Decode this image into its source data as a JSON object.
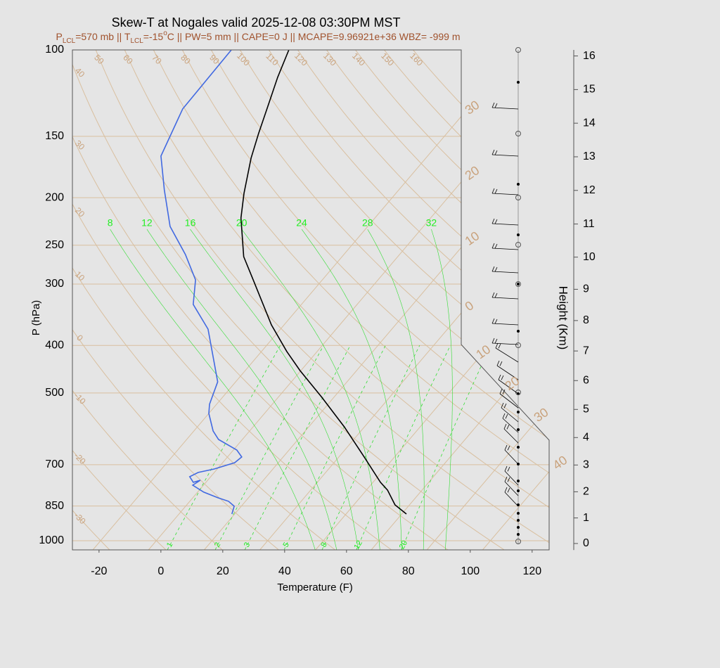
{
  "chart_data": {
    "type": "skewt",
    "title": "Skew-T at Nogales valid 2025-12-08 03:30PM MST",
    "subtitle_parts": [
      "P",
      "LCL",
      "=570 mb || T",
      "LCL",
      "=-15",
      "o",
      "C || PW=5 mm || CAPE=0 J || MCAPE=9.96921e+36 WBZ= -999 m"
    ],
    "x_label": "Temperature (F)",
    "y_label": "P (hPa)",
    "y2_label": "Height (Km)",
    "xlim": [
      -28.6,
      125.5
    ],
    "xticks": [
      -20,
      0,
      20,
      40,
      60,
      80,
      100,
      120
    ],
    "ylim": [
      1044,
      100
    ],
    "log_y": true,
    "yticks": [
      100,
      150,
      200,
      250,
      300,
      400,
      500,
      700,
      850,
      1000
    ],
    "y2lim": [
      -0.26,
      16.18
    ],
    "y2ticks": [
      0,
      1,
      2,
      3,
      4,
      5,
      6,
      7,
      8,
      9,
      10,
      11,
      12,
      13,
      14,
      15,
      16
    ],
    "grid": true,
    "series": [
      {
        "color": "#000000",
        "pressure": [
          100,
          113.7,
          130.6,
          148.1,
          166.1,
          196,
          220,
          263.8,
          296,
          363.3,
          411.7,
          450.1,
          510.3,
          586.2,
          675.2,
          760.3,
          788.4,
          845.2,
          882.3
        ],
        "values": [
          -96,
          -92.1,
          -87.2,
          -82.8,
          -78.5,
          -71.1,
          -65.3,
          -53.8,
          -43.8,
          -26.1,
          -13.8,
          -4.3,
          10.1,
          25.5,
          40.2,
          52.4,
          56.8,
          63.3,
          69.5
        ]
      },
      {
        "color": "#4169e1",
        "pressure": [
          100,
          131.9,
          164.5,
          192.8,
          228.9,
          261.2,
          294.1,
          330,
          370.6,
          474.6,
          527.2,
          550.4,
          597.6,
          622,
          653.5,
          675.2,
          693.4,
          714.3,
          726.1,
          740.6,
          760.3,
          753,
          770.6,
          796.4,
          817.6,
          831.2,
          850.6,
          882.3
        ],
        "values": [
          -114.6,
          -114.1,
          -108.2,
          -97.8,
          -85.9,
          -73.2,
          -63,
          -57,
          -45.4,
          -27.8,
          -24.3,
          -22,
          -15.8,
          -11.7,
          -2.9,
          0.6,
          -0.1,
          -5,
          -9.2,
          -10.8,
          -8.1,
          -6.4,
          -7.5,
          -2,
          4.1,
          8.5,
          11.7,
          13.1
        ]
      }
    ],
    "dry_adiabat_labels": [
      -30,
      -20,
      -10,
      0,
      10,
      20,
      30,
      40,
      50,
      60,
      70,
      80,
      90,
      100,
      110,
      120,
      130,
      140,
      150,
      160
    ],
    "isotherm_labels": [
      {
        "value": -30,
        "label": "30"
      },
      {
        "value": -20,
        "label": "20"
      },
      {
        "value": -10,
        "label": "10"
      },
      0,
      10,
      20,
      30,
      40
    ],
    "moist_adiabat_labels": [
      8,
      12,
      16,
      20,
      24,
      28,
      32
    ],
    "mixing_ratio_labels": [
      1,
      2,
      3,
      5,
      8,
      12,
      20
    ]
  }
}
